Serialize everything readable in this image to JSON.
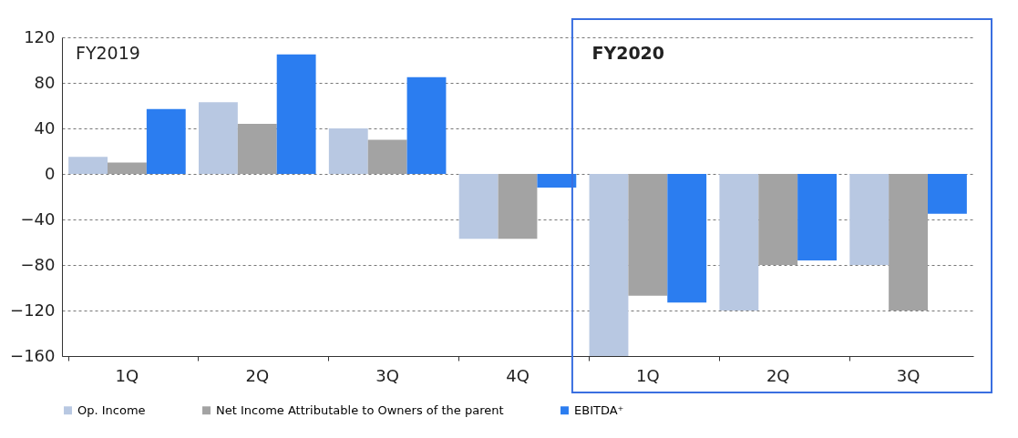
{
  "chart_data": {
    "type": "bar",
    "categories": [
      "1Q",
      "2Q",
      "3Q",
      "4Q",
      "1Q",
      "2Q",
      "3Q"
    ],
    "series": [
      {
        "name": "Op. Income",
        "color": "#b8c8e2",
        "values": [
          15,
          63,
          40,
          -57,
          -160,
          -120,
          -80
        ]
      },
      {
        "name": "Net Income Attributable to Owners of the parent",
        "color": "#a3a3a3",
        "values": [
          10,
          44,
          30,
          -57,
          -107,
          -80,
          -120
        ]
      },
      {
        "name": "EBITDA⁺",
        "color": "#2b7df0",
        "values": [
          57,
          105,
          85,
          -12,
          -113,
          -76,
          -35
        ]
      }
    ],
    "ylim": [
      -160,
      120
    ],
    "yticks": [
      -160,
      -120,
      -80,
      -40,
      0,
      40,
      80,
      120
    ],
    "grid": "y",
    "legend": "bottom",
    "annotations": [
      "FY2019",
      "FY2020"
    ]
  }
}
